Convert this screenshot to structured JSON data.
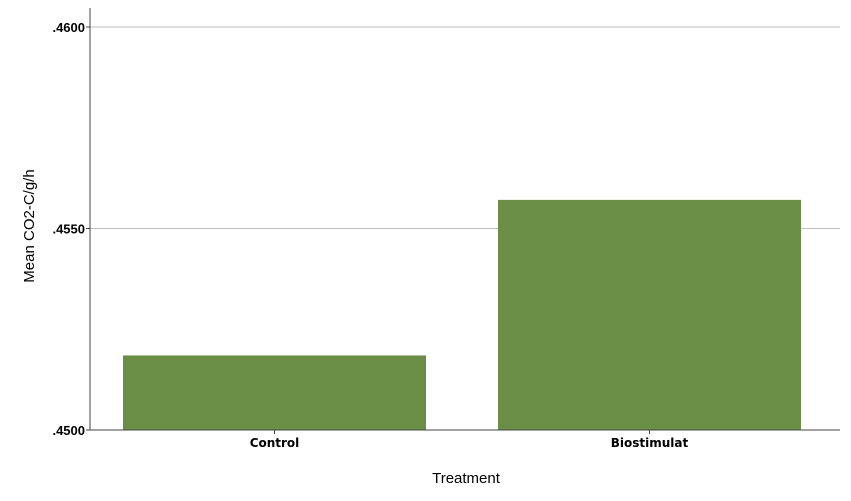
{
  "chart_data": {
    "type": "bar",
    "categories": [
      "Control",
      "Biostimulat"
    ],
    "values": [
      0.45185,
      0.45571
    ],
    "ylim": [
      0.45,
      0.46
    ],
    "yticks": [
      0.45,
      0.455,
      0.46
    ],
    "ytick_labels": [
      ".4500",
      ".4550",
      ".4600"
    ],
    "xlabel": "Treatment",
    "ylabel": "Mean CO2-C/g/h",
    "grid": true,
    "bar_color": "#6b8e47",
    "gridline_color": "#bfbfbf",
    "axis_color": "#444444"
  }
}
